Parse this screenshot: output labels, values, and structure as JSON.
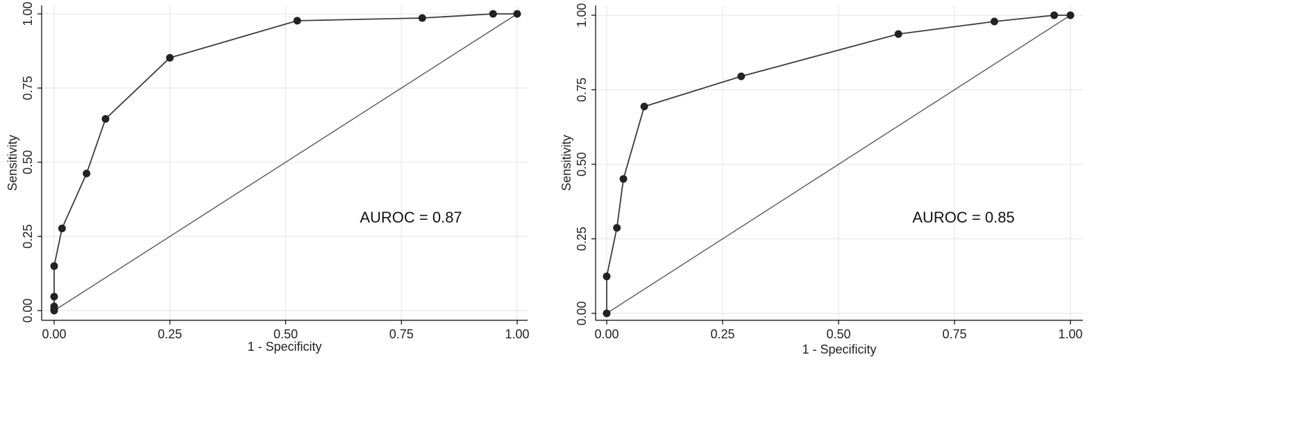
{
  "chart_data": [
    {
      "type": "line",
      "title": "",
      "xlabel": "1 - Specificity",
      "ylabel": "Sensitivity",
      "xlim": [
        0,
        1
      ],
      "ylim": [
        0,
        1
      ],
      "x_ticks": [
        "0.00",
        "0.25",
        "0.50",
        "0.75",
        "1.00"
      ],
      "y_ticks": [
        "0.00",
        "0.25",
        "0.50",
        "0.75",
        "1.00"
      ],
      "grid": true,
      "annotation": "AUROC = 0.87",
      "series": [
        {
          "x": [
            0.0,
            0.0,
            0.0,
            0.0,
            0.0,
            0.017,
            0.07,
            0.111,
            0.25,
            0.525,
            0.795,
            0.948,
            1.0
          ],
          "y": [
            0.0,
            0.005,
            0.014,
            0.047,
            0.15,
            0.277,
            0.462,
            0.646,
            0.852,
            0.977,
            0.986,
            1.0,
            1.0
          ]
        },
        {
          "x": [
            0.0,
            1.0
          ],
          "y": [
            0.0,
            1.0
          ]
        }
      ]
    },
    {
      "type": "line",
      "title": "",
      "xlabel": "1 - Specificity",
      "ylabel": "Sensitivity",
      "xlim": [
        0,
        1
      ],
      "ylim": [
        0,
        1
      ],
      "x_ticks": [
        "0.00",
        "0.25",
        "0.50",
        "0.75",
        "1.00"
      ],
      "y_ticks": [
        "0.00",
        "0.25",
        "0.50",
        "0.75",
        "1.00"
      ],
      "grid": true,
      "annotation": "AUROC = 0.85",
      "series": [
        {
          "x": [
            0.0,
            0.0,
            0.022,
            0.036,
            0.081,
            0.29,
            0.629,
            0.836,
            0.965,
            1.0
          ],
          "y": [
            0.0,
            0.124,
            0.287,
            0.451,
            0.694,
            0.795,
            0.937,
            0.979,
            1.0,
            1.0
          ]
        },
        {
          "x": [
            0.0,
            1.0
          ],
          "y": [
            0.0,
            1.0
          ]
        }
      ]
    }
  ],
  "colors": {
    "line": "#3a3a3a",
    "marker": "#222222",
    "grid": "#e3e3e3",
    "axis": "#000000",
    "reference": "#555555"
  }
}
